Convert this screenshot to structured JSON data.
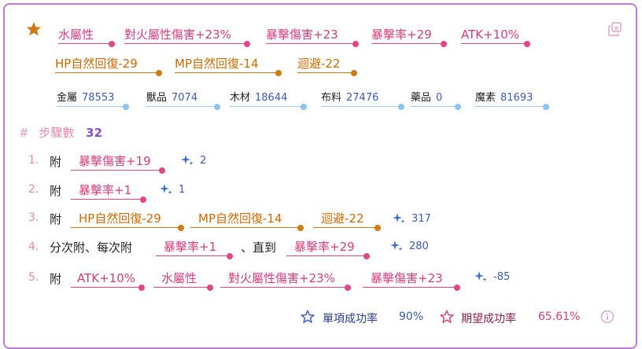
{
  "target_attributes": [
    {
      "label": "水屬性",
      "color": "pink"
    },
    {
      "label": "對火屬性傷害+23%",
      "color": "pink"
    },
    {
      "label": "暴擊傷害+23",
      "color": "pink"
    },
    {
      "label": "暴擊率+29",
      "color": "pink"
    },
    {
      "label": "ATK+10%",
      "color": "pink"
    },
    {
      "label": "HP自然回復-29",
      "color": "orange"
    },
    {
      "label": "MP自然回復-14",
      "color": "orange"
    },
    {
      "label": "迴避-22",
      "color": "orange"
    }
  ],
  "materials": [
    {
      "name": "金屬",
      "value": "78553"
    },
    {
      "name": "獸品",
      "value": "7074"
    },
    {
      "name": "木材",
      "value": "18644"
    },
    {
      "name": "布料",
      "value": "27476"
    },
    {
      "name": "藥品",
      "value": "0"
    },
    {
      "name": "魔素",
      "value": "81693"
    }
  ],
  "steps_header": {
    "hash": "#",
    "label": "步驟數",
    "count": "32"
  },
  "steps": [
    {
      "no": "1.",
      "text": "附",
      "tags": [
        {
          "label": "暴擊傷害+19",
          "color": "pink"
        }
      ],
      "count": "2"
    },
    {
      "no": "2.",
      "text": "附",
      "tags": [
        {
          "label": "暴擊率+1",
          "color": "pink"
        }
      ],
      "count": "1"
    },
    {
      "no": "3.",
      "text": "附",
      "tags": [
        {
          "label": "HP自然回復-29",
          "color": "orange"
        },
        {
          "label": "MP自然回復-14",
          "color": "orange"
        },
        {
          "label": "迴避-22",
          "color": "orange"
        }
      ],
      "count": "317"
    },
    {
      "no": "4.",
      "text": "分次附、每次附",
      "tags": [
        {
          "label": "暴擊率+1",
          "color": "pink"
        }
      ],
      "mid_text": "、直到",
      "tags2": [
        {
          "label": "暴擊率+29",
          "color": "pink"
        }
      ],
      "count": "280"
    },
    {
      "no": "5.",
      "text": "附",
      "tags": [
        {
          "label": "ATK+10%",
          "color": "pink"
        },
        {
          "label": "水屬性",
          "color": "pink"
        },
        {
          "label": "對火屬性傷害+23%",
          "color": "pink"
        },
        {
          "label": "暴擊傷害+23",
          "color": "pink"
        }
      ],
      "count": "-85"
    }
  ],
  "footer": {
    "single_label": "單項成功率",
    "single_value": "90%",
    "expected_label": "期望成功率",
    "expected_value": "65.61%"
  },
  "icons": {
    "star": "star-icon",
    "copy": "copy-icon",
    "sparkle": "sparkle-icon",
    "info": "info-icon"
  },
  "colors": {
    "pink": "#e0468a",
    "orange": "#d07a12",
    "blue": "#3b5bb5",
    "border": "#c27ad8"
  }
}
